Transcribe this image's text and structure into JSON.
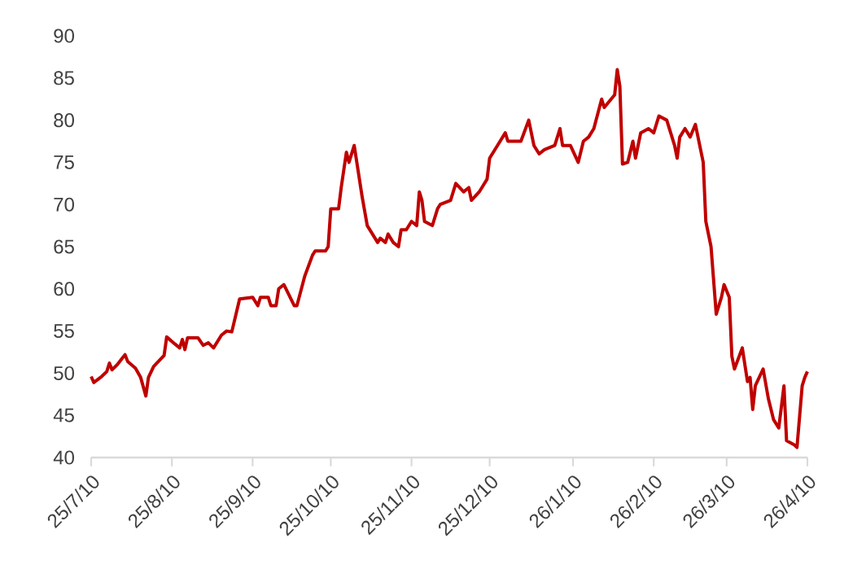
{
  "chart_data": {
    "type": "line",
    "x": [
      "2010-07-25",
      "2010-07-26",
      "2010-07-29",
      "2010-07-31",
      "2010-08-01",
      "2010-08-02",
      "2010-08-04",
      "2010-08-06",
      "2010-08-07",
      "2010-08-08",
      "2010-08-11",
      "2010-08-13",
      "2010-08-15",
      "2010-08-16",
      "2010-08-18",
      "2010-08-22",
      "2010-08-23",
      "2010-08-26",
      "2010-08-28",
      "2010-08-29",
      "2010-08-30",
      "2010-08-31",
      "2010-09-04",
      "2010-09-06",
      "2010-09-08",
      "2010-09-10",
      "2010-09-13",
      "2010-09-15",
      "2010-09-17",
      "2010-09-20",
      "2010-09-25",
      "2010-09-27",
      "2010-09-28",
      "2010-10-01",
      "2010-10-02",
      "2010-10-04",
      "2010-10-05",
      "2010-10-07",
      "2010-10-11",
      "2010-10-12",
      "2010-10-15",
      "2010-10-18",
      "2010-10-19",
      "2010-10-23",
      "2010-10-24",
      "2010-10-25",
      "2010-10-28",
      "2010-10-29",
      "2010-10-31",
      "2010-11-01",
      "2010-11-03",
      "2010-11-06",
      "2010-11-08",
      "2010-11-10",
      "2010-11-12",
      "2010-11-13",
      "2010-11-15",
      "2010-11-16",
      "2010-11-18",
      "2010-11-20",
      "2010-11-21",
      "2010-11-23",
      "2010-11-25",
      "2010-11-27",
      "2010-11-28",
      "2010-11-29",
      "2010-11-30",
      "2010-12-03",
      "2010-12-05",
      "2010-12-06",
      "2010-12-10",
      "2010-12-12",
      "2010-12-15",
      "2010-12-17",
      "2010-12-18",
      "2010-12-21",
      "2010-12-24",
      "2010-12-25",
      "2010-12-28",
      "2010-12-31",
      "2011-01-01",
      "2011-01-06",
      "2011-01-09",
      "2011-01-11",
      "2011-01-13",
      "2011-01-15",
      "2011-01-19",
      "2011-01-21",
      "2011-01-22",
      "2011-01-25",
      "2011-01-28",
      "2011-01-30",
      "2011-02-01",
      "2011-02-03",
      "2011-02-06",
      "2011-02-07",
      "2011-02-11",
      "2011-02-12",
      "2011-02-13",
      "2011-02-14",
      "2011-02-16",
      "2011-02-18",
      "2011-02-19",
      "2011-02-21",
      "2011-02-24",
      "2011-02-26",
      "2011-02-28",
      "2011-03-03",
      "2011-03-06",
      "2011-03-07",
      "2011-03-08",
      "2011-03-10",
      "2011-03-12",
      "2011-03-14",
      "2011-03-15",
      "2011-03-17",
      "2011-03-18",
      "2011-03-20",
      "2011-03-22",
      "2011-03-24",
      "2011-03-25",
      "2011-03-27",
      "2011-03-28",
      "2011-03-29",
      "2011-04-01",
      "2011-04-03",
      "2011-04-04",
      "2011-04-05",
      "2011-04-06",
      "2011-04-09",
      "2011-04-11",
      "2011-04-13",
      "2011-04-15",
      "2011-04-17",
      "2011-04-18",
      "2011-04-21",
      "2011-04-22",
      "2011-04-24",
      "2011-04-25",
      "2011-04-26"
    ],
    "series": [
      {
        "color": "#c00000",
        "values": [
          49.6,
          48.9,
          49.6,
          50.2,
          51.2,
          50.4,
          51,
          51.8,
          52.2,
          51.4,
          50.6,
          49.5,
          47.3,
          49.5,
          50.8,
          52.1,
          54.3,
          53.5,
          53,
          54,
          52.8,
          54.2,
          54.2,
          53.3,
          53.6,
          53,
          54.5,
          55,
          54.9,
          58.8,
          59,
          58,
          59,
          59,
          58,
          58,
          60,
          60.5,
          58,
          58,
          61.5,
          64,
          64.5,
          64.5,
          65,
          69.5,
          69.5,
          72,
          76.2,
          75,
          77,
          71,
          67.5,
          66.5,
          65.5,
          66,
          65.5,
          66.5,
          65.5,
          65,
          67,
          67,
          68,
          67.5,
          71.5,
          70.5,
          68,
          67.5,
          69.5,
          70,
          70.5,
          72.5,
          71.5,
          72,
          70.5,
          71.5,
          73,
          75.5,
          77,
          78.5,
          77.5,
          77.5,
          80,
          77,
          76,
          76.5,
          77,
          79,
          77,
          77,
          75,
          77.5,
          78,
          79,
          82.5,
          81.5,
          83,
          86,
          84,
          74.8,
          75,
          77.5,
          75.5,
          78.5,
          79,
          78.5,
          80.5,
          80,
          77,
          75.5,
          78,
          79,
          78,
          79.5,
          78,
          75,
          68,
          65,
          57,
          59,
          60.5,
          59,
          52,
          50.5,
          53,
          49,
          49.5,
          45.7,
          48.5,
          50.5,
          47,
          44.5,
          43.5,
          48.5,
          42,
          41.5,
          41.2,
          48.5,
          49.5,
          50.2
        ]
      }
    ],
    "xlim": [
      "2010-07-25",
      "2011-04-26"
    ],
    "xticks": [
      {
        "value": "2010-07-25",
        "label": "25/7/10"
      },
      {
        "value": "2010-08-25",
        "label": "25/8/10"
      },
      {
        "value": "2010-09-25",
        "label": "25/9/10"
      },
      {
        "value": "2010-10-25",
        "label": "25/10/10"
      },
      {
        "value": "2010-11-25",
        "label": "25/11/10"
      },
      {
        "value": "2010-12-25",
        "label": "25/12/10"
      },
      {
        "value": "2011-01-26",
        "label": "26/1/10"
      },
      {
        "value": "2011-02-26",
        "label": "26/2/10"
      },
      {
        "value": "2011-03-26",
        "label": "26/3/10"
      },
      {
        "value": "2011-04-26",
        "label": "26/4/10"
      }
    ],
    "ylim": [
      40,
      90
    ],
    "yticks": [
      40,
      45,
      50,
      55,
      60,
      65,
      70,
      75,
      80,
      85,
      90
    ],
    "grid": false,
    "marker": "none",
    "line_style": "solid"
  }
}
